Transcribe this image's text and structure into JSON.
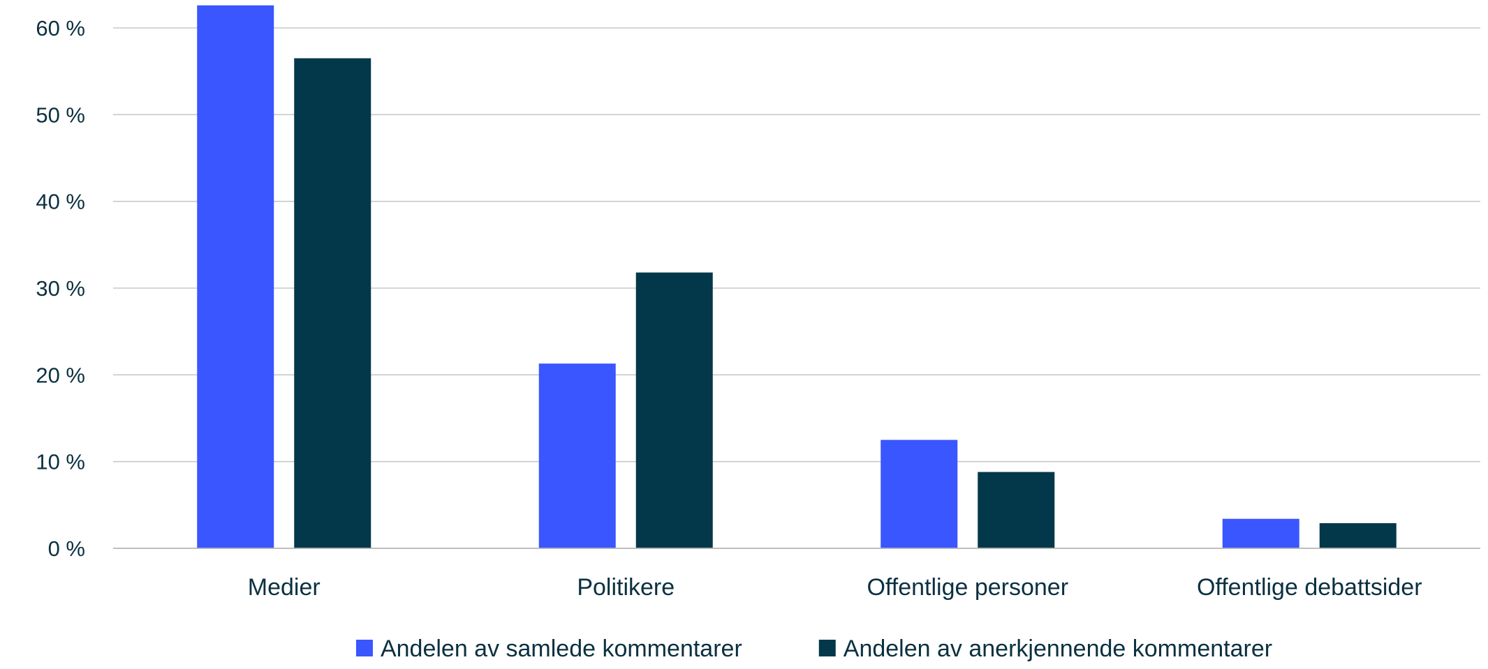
{
  "chart_data": {
    "type": "bar",
    "title": "",
    "xlabel": "",
    "ylabel": "",
    "categories": [
      "Medier",
      "Politikere",
      "Offentlige personer",
      "Offentlige debattsider"
    ],
    "series": [
      {
        "name": "Andelen av samlede kommentarer",
        "values": [
          62.6,
          21.3,
          12.5,
          3.4
        ],
        "color": "#3a56ff"
      },
      {
        "name": "Andelen av anerkjennende kommentarer",
        "values": [
          56.5,
          31.8,
          8.8,
          2.9
        ],
        "color": "#02384a"
      }
    ],
    "ylim": [
      0,
      60
    ],
    "yticks": [
      0,
      10,
      20,
      30,
      40,
      50,
      60
    ],
    "ytick_labels": [
      "0 %",
      "10 %",
      "20 %",
      "30 %",
      "40 %",
      "50 %",
      "60 %"
    ],
    "grid": true,
    "legend_position": "bottom"
  }
}
